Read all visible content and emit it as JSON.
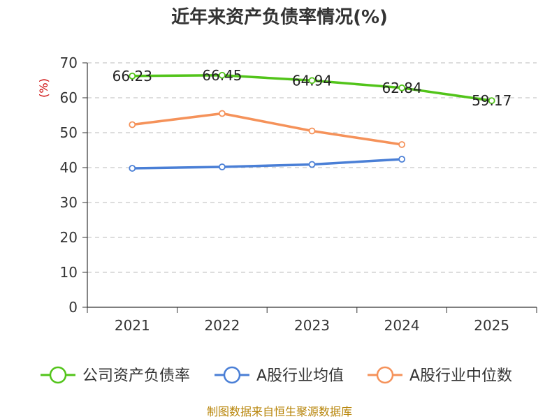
{
  "chart_data": {
    "type": "line",
    "title": "近年来资产负债率情况(%)",
    "ylabel": "(%)",
    "xlabel": "",
    "ylim": [
      0,
      70
    ],
    "yticks": [
      0,
      10,
      20,
      30,
      40,
      50,
      60,
      70
    ],
    "categories": [
      "2021",
      "2022",
      "2023",
      "2024",
      "2025"
    ],
    "grid": true,
    "legend_position": "bottom",
    "series": [
      {
        "name": "公司资产负债率",
        "color": "#52c41a",
        "values": [
          66.23,
          66.45,
          64.94,
          62.84,
          59.17
        ],
        "labels": [
          "66.23",
          "66.45",
          "64.94",
          "62.84",
          "59.17"
        ]
      },
      {
        "name": "A股行业均值",
        "color": "#4a7fd6",
        "values": [
          39.8,
          40.2,
          40.9,
          42.4,
          null
        ]
      },
      {
        "name": "A股行业中位数",
        "color": "#f5925a",
        "values": [
          52.3,
          55.5,
          50.5,
          46.6,
          null
        ]
      }
    ]
  },
  "source": "制图数据来自恒生聚源数据库"
}
